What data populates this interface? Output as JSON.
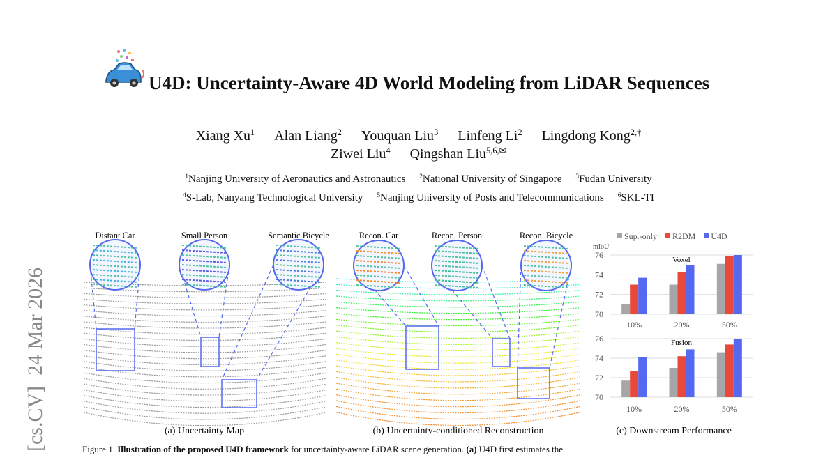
{
  "side_note": "[cs.CV]  24 Mar 2026",
  "title": "U4D: Uncertainty-Aware 4D World Modeling from LiDAR Sequences",
  "authors": [
    [
      {
        "name": "Xiang Xu",
        "sup": "1"
      },
      {
        "name": "Alan Liang",
        "sup": "2"
      },
      {
        "name": "Youquan Liu",
        "sup": "3"
      },
      {
        "name": "Linfeng Li",
        "sup": "2"
      },
      {
        "name": "Lingdong Kong",
        "sup": "2,†"
      }
    ],
    [
      {
        "name": "Ziwei Liu",
        "sup": "4"
      },
      {
        "name": "Qingshan Liu",
        "sup": "5,6,✉"
      }
    ]
  ],
  "affiliations": [
    [
      {
        "sup": "1",
        "name": "Nanjing University of Aeronautics and Astronautics"
      },
      {
        "sup": "2",
        "name": "National University of Singapore"
      },
      {
        "sup": "3",
        "name": "Fudan University"
      }
    ],
    [
      {
        "sup": "4",
        "name": "S-Lab, Nanyang Technological University"
      },
      {
        "sup": "5",
        "name": "Nanjing University of Posts and Telecommunications"
      },
      {
        "sup": "6",
        "name": "SKL-TI"
      }
    ]
  ],
  "figure": {
    "insets": [
      "Distant Car",
      "Small Person",
      "Semantic Bicycle",
      "Recon. Car",
      "Recon. Person",
      "Recon. Bicycle"
    ],
    "panels": [
      "(a) Uncertainty Map",
      "(b) Uncertainty-conditioned  Reconstruction",
      "(c) Downstream Performance"
    ]
  },
  "chart_data": [
    {
      "type": "bar",
      "title": "Voxel",
      "ylabel": "mIoU",
      "categories": [
        "10%",
        "20%",
        "50%"
      ],
      "series": [
        {
          "name": "Sup.-only",
          "color": "#a6a6a6",
          "values": [
            71.0,
            73.0,
            75.1
          ]
        },
        {
          "name": "R2DM",
          "color": "#e8493a",
          "values": [
            73.0,
            74.3,
            75.9
          ]
        },
        {
          "name": "U4D",
          "color": "#5468f0",
          "values": [
            73.7,
            75.0,
            76.0
          ]
        }
      ],
      "ylim": [
        70,
        76
      ],
      "yticks": [
        70,
        72,
        74,
        76
      ],
      "grid": true
    },
    {
      "type": "bar",
      "title": "Fusion",
      "categories": [
        "10%",
        "20%",
        "50%"
      ],
      "series": [
        {
          "name": "Sup.-only",
          "color": "#a6a6a6",
          "values": [
            71.7,
            73.0,
            74.6
          ]
        },
        {
          "name": "R2DM",
          "color": "#e8493a",
          "values": [
            72.7,
            74.2,
            75.4
          ]
        },
        {
          "name": "U4D",
          "color": "#5468f0",
          "values": [
            74.1,
            74.9,
            76.0
          ]
        }
      ],
      "ylim": [
        70,
        76
      ],
      "yticks": [
        70,
        72,
        74,
        76
      ],
      "grid": true
    }
  ],
  "caption": {
    "label": "Figure 1.",
    "bold": "Illustration of the proposed U4D framework",
    "text": " for uncertainty-aware LiDAR scene generation.",
    "bold2": "(a)",
    "text2": " U4D first estimates the"
  }
}
